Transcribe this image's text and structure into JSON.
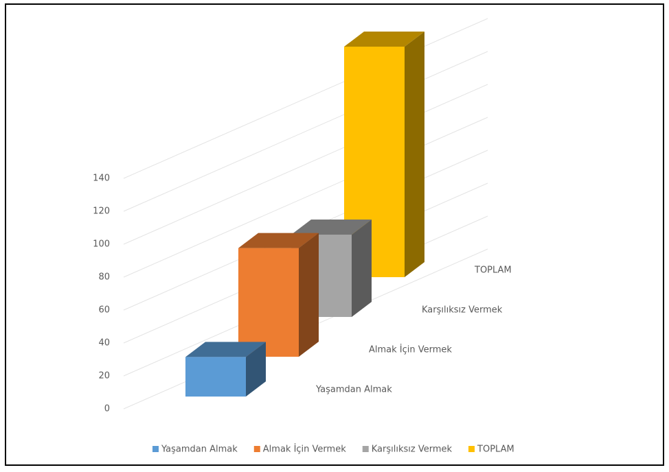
{
  "chart_data": {
    "type": "bar3d",
    "categories": [
      "Yaşamdan Almak",
      "Almak İçin Vermek",
      "Karşılıksız Vermek",
      "TOPLAM"
    ],
    "values": [
      24,
      66,
      50,
      140
    ],
    "colors": [
      "#5b9bd5",
      "#ed7d31",
      "#a5a5a5",
      "#ffc000"
    ],
    "ylim": [
      0,
      140
    ],
    "yticks": [
      0,
      20,
      40,
      60,
      80,
      100,
      120,
      140
    ],
    "grid": true,
    "legend": "bottom"
  }
}
